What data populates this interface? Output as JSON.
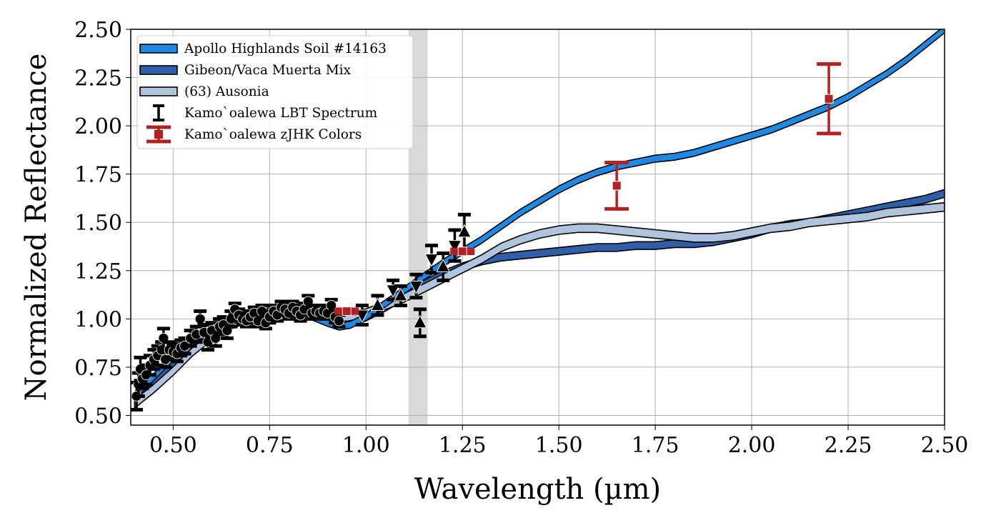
{
  "chart_data": {
    "type": "line",
    "title": "",
    "xlabel": "Wavelength (µm)",
    "ylabel": "Normalized Reflectance",
    "xlim": [
      0.39,
      2.5
    ],
    "ylim": [
      0.45,
      2.5
    ],
    "grid": true,
    "legend_position": "top-left",
    "xticks": [
      0.5,
      0.75,
      1.0,
      1.25,
      1.5,
      1.75,
      2.0,
      2.25,
      2.5
    ],
    "xtick_labels": [
      "0.50",
      "0.75",
      "1.00",
      "1.25",
      "1.50",
      "1.75",
      "2.00",
      "2.25",
      "2.50"
    ],
    "yticks": [
      0.5,
      0.75,
      1.0,
      1.25,
      1.5,
      1.75,
      2.0,
      2.25,
      2.5
    ],
    "ytick_labels": [
      "0.50",
      "0.75",
      "1.00",
      "1.25",
      "1.50",
      "1.75",
      "2.00",
      "2.25",
      "2.50"
    ],
    "shaded_band": {
      "x_from": 1.11,
      "x_to": 1.16,
      "color": "#d9d9d9"
    },
    "series": [
      {
        "name": "Apollo Highlands Soil #14163",
        "kind": "band",
        "color": "#1e88e5",
        "x": [
          0.4,
          0.45,
          0.5,
          0.55,
          0.6,
          0.65,
          0.7,
          0.75,
          0.8,
          0.85,
          0.9,
          0.93,
          0.96,
          1.0,
          1.05,
          1.1,
          1.15,
          1.2,
          1.25,
          1.3,
          1.35,
          1.4,
          1.45,
          1.5,
          1.55,
          1.6,
          1.65,
          1.7,
          1.75,
          1.8,
          1.85,
          1.9,
          1.95,
          2.0,
          2.05,
          2.1,
          2.15,
          2.2,
          2.25,
          2.3,
          2.35,
          2.4,
          2.45,
          2.5
        ],
        "y": [
          0.6,
          0.7,
          0.8,
          0.88,
          0.94,
          0.99,
          1.02,
          1.04,
          1.04,
          1.02,
          0.98,
          0.96,
          0.97,
          1.01,
          1.08,
          1.15,
          1.22,
          1.29,
          1.35,
          1.41,
          1.48,
          1.55,
          1.61,
          1.67,
          1.72,
          1.76,
          1.79,
          1.81,
          1.83,
          1.84,
          1.86,
          1.89,
          1.92,
          1.95,
          1.98,
          2.02,
          2.06,
          2.1,
          2.15,
          2.21,
          2.27,
          2.34,
          2.42,
          2.5
        ],
        "half_width": 0.018
      },
      {
        "name": "Gibeon/Vaca Muerta Mix",
        "kind": "band",
        "color": "#2f5fa7",
        "x": [
          0.4,
          0.45,
          0.5,
          0.55,
          0.6,
          0.65,
          0.7,
          0.75,
          0.8,
          0.85,
          0.9,
          0.95,
          1.0,
          1.05,
          1.1,
          1.15,
          1.2,
          1.25,
          1.3,
          1.35,
          1.4,
          1.45,
          1.5,
          1.55,
          1.6,
          1.65,
          1.7,
          1.75,
          1.8,
          1.85,
          1.9,
          1.95,
          2.0,
          2.05,
          2.1,
          2.15,
          2.2,
          2.25,
          2.3,
          2.35,
          2.4,
          2.45,
          2.5
        ],
        "y": [
          0.58,
          0.67,
          0.77,
          0.86,
          0.93,
          0.98,
          1.01,
          1.03,
          1.03,
          1.02,
          1.0,
          0.99,
          1.01,
          1.06,
          1.12,
          1.18,
          1.23,
          1.27,
          1.3,
          1.32,
          1.33,
          1.34,
          1.35,
          1.36,
          1.37,
          1.37,
          1.38,
          1.38,
          1.39,
          1.39,
          1.4,
          1.42,
          1.44,
          1.47,
          1.49,
          1.5,
          1.52,
          1.54,
          1.56,
          1.58,
          1.6,
          1.62,
          1.65
        ],
        "half_width": 0.02
      },
      {
        "name": "(63) Ausonia",
        "kind": "band",
        "color": "#b0c4de",
        "x": [
          0.4,
          0.45,
          0.5,
          0.55,
          0.6,
          0.65,
          0.7,
          0.75,
          0.8,
          0.85,
          0.9,
          0.95,
          1.0,
          1.05,
          1.1,
          1.15,
          1.2,
          1.25,
          1.3,
          1.35,
          1.4,
          1.45,
          1.5,
          1.55,
          1.6,
          1.65,
          1.7,
          1.75,
          1.8,
          1.85,
          1.9,
          1.95,
          2.0,
          2.05,
          2.1,
          2.15,
          2.2,
          2.25,
          2.3,
          2.35,
          2.4,
          2.45,
          2.5
        ],
        "y": [
          0.56,
          0.64,
          0.73,
          0.83,
          0.91,
          0.97,
          1.01,
          1.03,
          1.04,
          1.03,
          1.02,
          1.01,
          1.03,
          1.07,
          1.11,
          1.16,
          1.21,
          1.26,
          1.31,
          1.37,
          1.41,
          1.44,
          1.46,
          1.47,
          1.47,
          1.46,
          1.45,
          1.44,
          1.43,
          1.42,
          1.42,
          1.43,
          1.45,
          1.47,
          1.48,
          1.5,
          1.51,
          1.52,
          1.53,
          1.55,
          1.56,
          1.57,
          1.58
        ],
        "half_width": 0.022
      },
      {
        "name": "Kamo`oalewa LBT Spectrum",
        "kind": "errorbar",
        "color": "#000000",
        "points": [
          {
            "x": 0.405,
            "y": 0.6,
            "err": 0.07,
            "marker": "circle"
          },
          {
            "x": 0.41,
            "y": 0.66,
            "err": 0.06,
            "marker": "circle"
          },
          {
            "x": 0.415,
            "y": 0.74,
            "err": 0.06,
            "marker": "circle"
          },
          {
            "x": 0.42,
            "y": 0.69,
            "err": 0.05,
            "marker": "circle"
          },
          {
            "x": 0.43,
            "y": 0.71,
            "err": 0.05,
            "marker": "circle"
          },
          {
            "x": 0.44,
            "y": 0.76,
            "err": 0.05,
            "marker": "circle"
          },
          {
            "x": 0.45,
            "y": 0.79,
            "err": 0.05,
            "marker": "circle"
          },
          {
            "x": 0.46,
            "y": 0.81,
            "err": 0.05,
            "marker": "circle"
          },
          {
            "x": 0.47,
            "y": 0.84,
            "err": 0.04,
            "marker": "circle"
          },
          {
            "x": 0.475,
            "y": 0.9,
            "err": 0.05,
            "marker": "circle"
          },
          {
            "x": 0.48,
            "y": 0.79,
            "err": 0.04,
            "marker": "circle"
          },
          {
            "x": 0.49,
            "y": 0.84,
            "err": 0.04,
            "marker": "circle"
          },
          {
            "x": 0.5,
            "y": 0.83,
            "err": 0.04,
            "marker": "circle"
          },
          {
            "x": 0.51,
            "y": 0.82,
            "err": 0.04,
            "marker": "circle"
          },
          {
            "x": 0.52,
            "y": 0.85,
            "err": 0.04,
            "marker": "circle"
          },
          {
            "x": 0.53,
            "y": 0.86,
            "err": 0.04,
            "marker": "circle"
          },
          {
            "x": 0.545,
            "y": 0.9,
            "err": 0.04,
            "marker": "circle"
          },
          {
            "x": 0.56,
            "y": 0.92,
            "err": 0.04,
            "marker": "circle"
          },
          {
            "x": 0.57,
            "y": 1.0,
            "err": 0.04,
            "marker": "circle"
          },
          {
            "x": 0.58,
            "y": 0.93,
            "err": 0.04,
            "marker": "circle"
          },
          {
            "x": 0.59,
            "y": 0.88,
            "err": 0.04,
            "marker": "circle"
          },
          {
            "x": 0.6,
            "y": 0.94,
            "err": 0.04,
            "marker": "circle"
          },
          {
            "x": 0.61,
            "y": 0.9,
            "err": 0.04,
            "marker": "circle"
          },
          {
            "x": 0.62,
            "y": 0.96,
            "err": 0.04,
            "marker": "circle"
          },
          {
            "x": 0.63,
            "y": 0.97,
            "err": 0.04,
            "marker": "circle"
          },
          {
            "x": 0.64,
            "y": 0.94,
            "err": 0.04,
            "marker": "circle"
          },
          {
            "x": 0.65,
            "y": 1.0,
            "err": 0.04,
            "marker": "circle"
          },
          {
            "x": 0.66,
            "y": 1.05,
            "err": 0.03,
            "marker": "circle"
          },
          {
            "x": 0.67,
            "y": 1.02,
            "err": 0.03,
            "marker": "circle"
          },
          {
            "x": 0.68,
            "y": 1.0,
            "err": 0.03,
            "marker": "circle"
          },
          {
            "x": 0.69,
            "y": 0.99,
            "err": 0.03,
            "marker": "circle"
          },
          {
            "x": 0.7,
            "y": 1.01,
            "err": 0.03,
            "marker": "circle"
          },
          {
            "x": 0.71,
            "y": 1.03,
            "err": 0.03,
            "marker": "circle"
          },
          {
            "x": 0.72,
            "y": 0.99,
            "err": 0.03,
            "marker": "circle"
          },
          {
            "x": 0.73,
            "y": 1.04,
            "err": 0.03,
            "marker": "circle"
          },
          {
            "x": 0.74,
            "y": 0.98,
            "err": 0.03,
            "marker": "circle"
          },
          {
            "x": 0.75,
            "y": 1.01,
            "err": 0.03,
            "marker": "circle"
          },
          {
            "x": 0.76,
            "y": 1.04,
            "err": 0.03,
            "marker": "circle"
          },
          {
            "x": 0.77,
            "y": 1.02,
            "err": 0.03,
            "marker": "circle"
          },
          {
            "x": 0.78,
            "y": 1.06,
            "err": 0.03,
            "marker": "circle"
          },
          {
            "x": 0.79,
            "y": 1.05,
            "err": 0.03,
            "marker": "circle"
          },
          {
            "x": 0.8,
            "y": 1.03,
            "err": 0.03,
            "marker": "circle"
          },
          {
            "x": 0.81,
            "y": 1.06,
            "err": 0.03,
            "marker": "circle"
          },
          {
            "x": 0.82,
            "y": 1.04,
            "err": 0.03,
            "marker": "circle"
          },
          {
            "x": 0.83,
            "y": 1.02,
            "err": 0.03,
            "marker": "circle"
          },
          {
            "x": 0.84,
            "y": 1.05,
            "err": 0.03,
            "marker": "circle"
          },
          {
            "x": 0.85,
            "y": 1.09,
            "err": 0.03,
            "marker": "circle"
          },
          {
            "x": 0.86,
            "y": 1.03,
            "err": 0.03,
            "marker": "circle"
          },
          {
            "x": 0.87,
            "y": 1.04,
            "err": 0.03,
            "marker": "circle"
          },
          {
            "x": 0.88,
            "y": 1.03,
            "err": 0.03,
            "marker": "circle"
          },
          {
            "x": 0.89,
            "y": 1.04,
            "err": 0.03,
            "marker": "circle"
          },
          {
            "x": 0.9,
            "y": 1.03,
            "err": 0.03,
            "marker": "circle"
          },
          {
            "x": 0.91,
            "y": 1.07,
            "err": 0.03,
            "marker": "circle"
          },
          {
            "x": 0.92,
            "y": 1.01,
            "err": 0.03,
            "marker": "circle"
          },
          {
            "x": 0.93,
            "y": 0.99,
            "err": 0.03,
            "marker": "circle"
          },
          {
            "x": 0.99,
            "y": 1.02,
            "err": 0.05,
            "marker": "triangle-down"
          },
          {
            "x": 1.03,
            "y": 1.07,
            "err": 0.05,
            "marker": "triangle-up"
          },
          {
            "x": 1.07,
            "y": 1.15,
            "err": 0.05,
            "marker": "triangle-down"
          },
          {
            "x": 1.09,
            "y": 1.12,
            "err": 0.05,
            "marker": "triangle-up"
          },
          {
            "x": 1.13,
            "y": 1.17,
            "err": 0.06,
            "marker": "triangle-down"
          },
          {
            "x": 1.14,
            "y": 0.98,
            "err": 0.07,
            "marker": "triangle-up"
          },
          {
            "x": 1.17,
            "y": 1.31,
            "err": 0.07,
            "marker": "triangle-down"
          },
          {
            "x": 1.2,
            "y": 1.27,
            "err": 0.07,
            "marker": "triangle-up"
          },
          {
            "x": 1.23,
            "y": 1.38,
            "err": 0.08,
            "marker": "triangle-down"
          },
          {
            "x": 1.255,
            "y": 1.45,
            "err": 0.09,
            "marker": "triangle-up"
          }
        ]
      },
      {
        "name": "Kamo`oalewa zJHK Colors",
        "kind": "errorbar",
        "color": "#b22222",
        "points": [
          {
            "x": 0.95,
            "y": 1.04,
            "err": 0.01,
            "marker": "square"
          },
          {
            "x": 1.25,
            "y": 1.35,
            "err": 0.01,
            "marker": "square"
          },
          {
            "x": 1.65,
            "y": 1.69,
            "err": 0.12,
            "marker": "square"
          },
          {
            "x": 2.2,
            "y": 2.14,
            "err": 0.18,
            "marker": "square"
          }
        ]
      }
    ],
    "legend": [
      {
        "label": "Apollo Highlands Soil #14163",
        "symbol": "patch",
        "color": "#1e88e5"
      },
      {
        "label": "Gibeon/Vaca Muerta Mix",
        "symbol": "patch",
        "color": "#2f5fa7"
      },
      {
        "label": "(63) Ausonia",
        "symbol": "patch",
        "color": "#b0c4de"
      },
      {
        "label": "Kamo`oalewa LBT Spectrum",
        "symbol": "errorbar",
        "color": "#000000"
      },
      {
        "label": "Kamo`oalewa zJHK Colors",
        "symbol": "errorbar-square",
        "color": "#b22222"
      }
    ]
  }
}
